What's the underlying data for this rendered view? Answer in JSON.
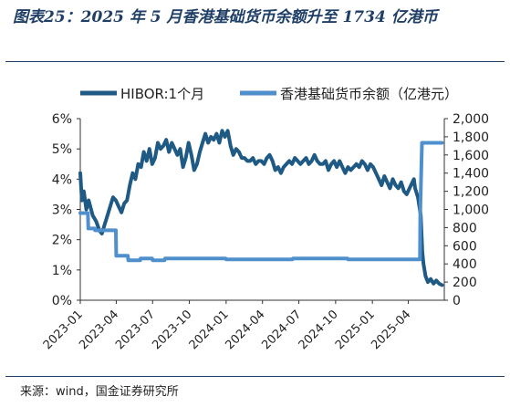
{
  "title": "图表25：2025 年 5 月香港基础货币余额升至 1734 亿港币",
  "source": "来源：wind，国金证券研究所",
  "chart_data": {
    "type": "line",
    "series": [
      {
        "name": "HIBOR:1个月",
        "axis": "left",
        "color": "#1f5a85",
        "points": [
          [
            "2023-01-01",
            4.2
          ],
          [
            "2023-01-05",
            3.3
          ],
          [
            "2023-01-10",
            3.6
          ],
          [
            "2023-01-16",
            3.0
          ],
          [
            "2023-01-22",
            3.3
          ],
          [
            "2023-02-01",
            2.8
          ],
          [
            "2023-02-10",
            2.6
          ],
          [
            "2023-02-18",
            2.3
          ],
          [
            "2023-02-24",
            2.2
          ],
          [
            "2023-03-03",
            2.5
          ],
          [
            "2023-03-10",
            2.8
          ],
          [
            "2023-03-17",
            3.1
          ],
          [
            "2023-03-24",
            3.4
          ],
          [
            "2023-03-31",
            3.3
          ],
          [
            "2023-04-07",
            3.1
          ],
          [
            "2023-04-14",
            2.9
          ],
          [
            "2023-04-21",
            3.2
          ],
          [
            "2023-04-28",
            3.3
          ],
          [
            "2023-05-05",
            3.8
          ],
          [
            "2023-05-12",
            4.2
          ],
          [
            "2023-05-19",
            4.0
          ],
          [
            "2023-05-26",
            4.5
          ],
          [
            "2023-06-02",
            4.4
          ],
          [
            "2023-06-09",
            4.9
          ],
          [
            "2023-06-16",
            4.6
          ],
          [
            "2023-06-23",
            5.0
          ],
          [
            "2023-06-30",
            4.5
          ],
          [
            "2023-07-07",
            4.7
          ],
          [
            "2023-07-14",
            5.2
          ],
          [
            "2023-07-21",
            5.0
          ],
          [
            "2023-07-28",
            5.1
          ],
          [
            "2023-08-04",
            5.3
          ],
          [
            "2023-08-11",
            4.9
          ],
          [
            "2023-08-18",
            5.2
          ],
          [
            "2023-08-25",
            5.0
          ],
          [
            "2023-09-01",
            4.8
          ],
          [
            "2023-09-08",
            5.0
          ],
          [
            "2023-09-15",
            4.4
          ],
          [
            "2023-09-22",
            4.7
          ],
          [
            "2023-09-29",
            5.2
          ],
          [
            "2023-10-06",
            4.8
          ],
          [
            "2023-10-13",
            4.3
          ],
          [
            "2023-10-20",
            4.5
          ],
          [
            "2023-10-27",
            4.9
          ],
          [
            "2023-11-03",
            5.2
          ],
          [
            "2023-11-10",
            5.5
          ],
          [
            "2023-11-17",
            5.2
          ],
          [
            "2023-11-24",
            5.4
          ],
          [
            "2023-12-01",
            5.3
          ],
          [
            "2023-12-08",
            5.5
          ],
          [
            "2023-12-15",
            5.2
          ],
          [
            "2023-12-22",
            5.6
          ],
          [
            "2023-12-29",
            5.4
          ],
          [
            "2024-01-05",
            5.6
          ],
          [
            "2024-01-12",
            5.1
          ],
          [
            "2024-01-19",
            4.8
          ],
          [
            "2024-01-26",
            5.0
          ],
          [
            "2024-02-02",
            4.9
          ],
          [
            "2024-02-09",
            4.7
          ],
          [
            "2024-02-16",
            4.7
          ],
          [
            "2024-02-23",
            4.6
          ],
          [
            "2024-03-01",
            4.6
          ],
          [
            "2024-03-08",
            4.7
          ],
          [
            "2024-03-15",
            4.5
          ],
          [
            "2024-03-22",
            4.6
          ],
          [
            "2024-03-29",
            4.6
          ],
          [
            "2024-04-05",
            4.5
          ],
          [
            "2024-04-12",
            4.7
          ],
          [
            "2024-04-19",
            4.8
          ],
          [
            "2024-04-26",
            4.6
          ],
          [
            "2024-05-03",
            4.3
          ],
          [
            "2024-05-10",
            4.4
          ],
          [
            "2024-05-17",
            4.2
          ],
          [
            "2024-05-24",
            4.4
          ],
          [
            "2024-05-31",
            4.5
          ],
          [
            "2024-06-07",
            4.6
          ],
          [
            "2024-06-14",
            4.5
          ],
          [
            "2024-06-21",
            4.7
          ],
          [
            "2024-06-28",
            4.6
          ],
          [
            "2024-07-05",
            4.5
          ],
          [
            "2024-07-12",
            4.6
          ],
          [
            "2024-07-19",
            4.7
          ],
          [
            "2024-07-26",
            4.5
          ],
          [
            "2024-08-02",
            4.6
          ],
          [
            "2024-08-09",
            4.8
          ],
          [
            "2024-08-16",
            4.6
          ],
          [
            "2024-08-23",
            4.5
          ],
          [
            "2024-08-30",
            4.5
          ],
          [
            "2024-09-06",
            4.6
          ],
          [
            "2024-09-13",
            4.3
          ],
          [
            "2024-09-20",
            4.5
          ],
          [
            "2024-09-27",
            4.6
          ],
          [
            "2024-10-04",
            4.4
          ],
          [
            "2024-10-11",
            4.6
          ],
          [
            "2024-10-18",
            4.4
          ],
          [
            "2024-10-25",
            4.2
          ],
          [
            "2024-11-01",
            4.4
          ],
          [
            "2024-11-08",
            4.3
          ],
          [
            "2024-11-15",
            4.4
          ],
          [
            "2024-11-22",
            4.5
          ],
          [
            "2024-11-29",
            4.4
          ],
          [
            "2024-12-06",
            4.6
          ],
          [
            "2024-12-13",
            4.5
          ],
          [
            "2024-12-20",
            4.3
          ],
          [
            "2024-12-27",
            4.5
          ],
          [
            "2025-01-03",
            4.4
          ],
          [
            "2025-01-10",
            4.2
          ],
          [
            "2025-01-17",
            4.0
          ],
          [
            "2025-01-24",
            3.8
          ],
          [
            "2025-01-31",
            4.1
          ],
          [
            "2025-02-07",
            3.9
          ],
          [
            "2025-02-14",
            3.7
          ],
          [
            "2025-02-21",
            4.0
          ],
          [
            "2025-02-28",
            3.8
          ],
          [
            "2025-03-07",
            3.7
          ],
          [
            "2025-03-14",
            3.9
          ],
          [
            "2025-03-21",
            3.6
          ],
          [
            "2025-03-28",
            3.5
          ],
          [
            "2025-04-04",
            3.7
          ],
          [
            "2025-04-11",
            3.9
          ],
          [
            "2025-04-15",
            4.0
          ],
          [
            "2025-04-18",
            3.7
          ],
          [
            "2025-04-25",
            3.4
          ],
          [
            "2025-05-02",
            2.8
          ],
          [
            "2025-05-06",
            1.6
          ],
          [
            "2025-05-09",
            1.2
          ],
          [
            "2025-05-14",
            0.8
          ],
          [
            "2025-05-20",
            0.6
          ],
          [
            "2025-05-27",
            0.7
          ],
          [
            "2025-06-03",
            0.55
          ],
          [
            "2025-06-10",
            0.65
          ],
          [
            "2025-06-17",
            0.55
          ],
          [
            "2025-06-24",
            0.5
          ]
        ]
      },
      {
        "name": "香港基础货币余额（亿港元）",
        "axis": "right",
        "color": "#4f8fcc",
        "points": [
          [
            "2023-01-01",
            960
          ],
          [
            "2023-01-20",
            960
          ],
          [
            "2023-01-21",
            790
          ],
          [
            "2023-02-06",
            790
          ],
          [
            "2023-02-07",
            770
          ],
          [
            "2023-03-31",
            770
          ],
          [
            "2023-04-01",
            490
          ],
          [
            "2023-04-30",
            490
          ],
          [
            "2023-05-01",
            440
          ],
          [
            "2023-05-31",
            440
          ],
          [
            "2023-06-01",
            460
          ],
          [
            "2023-06-30",
            460
          ],
          [
            "2023-07-01",
            440
          ],
          [
            "2023-07-31",
            440
          ],
          [
            "2023-08-01",
            460
          ],
          [
            "2023-12-31",
            460
          ],
          [
            "2024-01-01",
            450
          ],
          [
            "2024-05-31",
            450
          ],
          [
            "2024-06-01",
            450
          ],
          [
            "2024-06-15",
            450
          ],
          [
            "2024-06-16",
            460
          ],
          [
            "2024-10-31",
            460
          ],
          [
            "2024-11-01",
            450
          ],
          [
            "2025-04-30",
            450
          ],
          [
            "2025-05-01",
            1000
          ],
          [
            "2025-05-05",
            1734
          ],
          [
            "2025-06-24",
            1734
          ]
        ]
      }
    ],
    "xlim": [
      "2023-01-01",
      "2025-06-30"
    ],
    "x_ticks": [
      "2023-01",
      "2023-04",
      "2023-07",
      "2023-10",
      "2024-01",
      "2024-04",
      "2024-07",
      "2024-10",
      "2025-01",
      "2025-04"
    ],
    "y_left": {
      "min": 0,
      "max": 6,
      "ticks": [
        0,
        1,
        2,
        3,
        4,
        5,
        6
      ],
      "tick_labels": [
        "0%",
        "1%",
        "2%",
        "3%",
        "4%",
        "5%",
        "6%"
      ]
    },
    "y_right": {
      "min": 0,
      "max": 2000,
      "ticks": [
        0,
        200,
        400,
        600,
        800,
        1000,
        1200,
        1400,
        1600,
        1800,
        2000
      ],
      "tick_labels": [
        "0",
        "200",
        "400",
        "600",
        "800",
        "1,000",
        "1,200",
        "1,400",
        "1,600",
        "1,800",
        "2,000"
      ]
    },
    "grid": false,
    "legend_position": "top"
  }
}
